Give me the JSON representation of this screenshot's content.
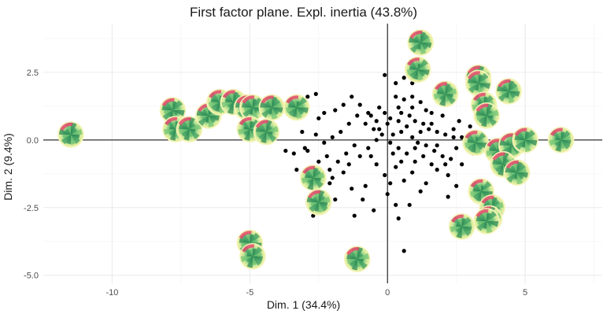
{
  "chart_data": {
    "type": "scatter",
    "title": "First factor plane. Expl. inertia (43.8%)",
    "xlabel": "Dim. 1 (34.4%)",
    "ylabel": "Dim. 2 (9.4%)",
    "xlim": [
      -12.5,
      7.8
    ],
    "ylim": [
      -5.3,
      4.3
    ],
    "x_ticks": [
      -10,
      -5,
      0,
      5
    ],
    "x_tick_labels": [
      "-10",
      "-5",
      "0",
      "5"
    ],
    "y_ticks": [
      -5,
      -2.5,
      0,
      2.5
    ],
    "y_tick_labels": [
      "-5.0",
      "-2.5",
      "0.0",
      "2.5"
    ],
    "grid": true,
    "reference_lines": {
      "x": 0,
      "y": 0
    },
    "colors": {
      "points": "#000000",
      "glyph_inner": "#2e8b57",
      "glyph_mid": "#74c476",
      "glyph_outer": "#f7f7a1",
      "glyph_accent": "#e34a6f",
      "grid_major": "#ebebeb",
      "grid_minor": "#f5f5f5"
    },
    "series": [
      {
        "marker": "point",
        "points": [
          [
            0.6,
            2.3
          ],
          [
            -0.1,
            2.4
          ],
          [
            0.3,
            2.1
          ],
          [
            0.9,
            2.1
          ],
          [
            0.3,
            1.6
          ],
          [
            0.6,
            1.5
          ],
          [
            0.4,
            1.2
          ],
          [
            0.9,
            1.2
          ],
          [
            1.2,
            1.4
          ],
          [
            1.4,
            1.1
          ],
          [
            1.6,
            1.0
          ],
          [
            2.0,
            0.9
          ],
          [
            -0.3,
            1.2
          ],
          [
            -0.1,
            1.0
          ],
          [
            0.1,
            0.8
          ],
          [
            0.0,
            0.6
          ],
          [
            0.4,
            0.7
          ],
          [
            0.7,
            0.5
          ],
          [
            1.0,
            0.7
          ],
          [
            1.3,
            0.6
          ],
          [
            1.5,
            0.4
          ],
          [
            1.8,
            0.3
          ],
          [
            2.1,
            0.2
          ],
          [
            2.4,
            0.4
          ],
          [
            2.7,
            0.1
          ],
          [
            3.0,
            -0.2
          ],
          [
            0.2,
            0.2
          ],
          [
            0.5,
            0.3
          ],
          [
            0.9,
            0.1
          ],
          [
            1.1,
            -0.1
          ],
          [
            1.4,
            -0.2
          ],
          [
            1.7,
            -0.4
          ],
          [
            2.0,
            -0.6
          ],
          [
            2.3,
            -0.7
          ],
          [
            2.5,
            -0.3
          ],
          [
            2.1,
            -0.9
          ],
          [
            1.6,
            -0.9
          ],
          [
            1.3,
            -0.6
          ],
          [
            1.0,
            -0.8
          ],
          [
            0.7,
            -0.5
          ],
          [
            0.4,
            -0.3
          ],
          [
            0.1,
            -0.1
          ],
          [
            -0.2,
            0.2
          ],
          [
            -0.5,
            0.4
          ],
          [
            -0.8,
            0.6
          ],
          [
            -1.1,
            0.9
          ],
          [
            -1.4,
            0.6
          ],
          [
            -1.7,
            0.3
          ],
          [
            -2.0,
            0.1
          ],
          [
            -2.3,
            -0.1
          ],
          [
            -2.6,
            0.2
          ],
          [
            -2.9,
            -0.4
          ],
          [
            -2.5,
            0.8
          ],
          [
            -2.9,
            1.6
          ],
          [
            -2.6,
            1.7
          ],
          [
            -2.3,
            1.0
          ],
          [
            -1.9,
            1.1
          ],
          [
            -1.6,
            1.3
          ],
          [
            -1.3,
            1.6
          ],
          [
            -1.0,
            1.3
          ],
          [
            -0.7,
            1.0
          ],
          [
            -0.4,
            0.7
          ],
          [
            -1.2,
            -0.2
          ],
          [
            -1.5,
            -0.5
          ],
          [
            -1.8,
            -0.8
          ],
          [
            -2.1,
            -1.1
          ],
          [
            -1.0,
            -0.6
          ],
          [
            -0.7,
            -0.3
          ],
          [
            -0.4,
            -0.9
          ],
          [
            -0.1,
            -1.3
          ],
          [
            0.3,
            -1.0
          ],
          [
            0.6,
            -1.5
          ],
          [
            0.9,
            -1.2
          ],
          [
            1.2,
            -1.9
          ],
          [
            0.8,
            -2.4
          ],
          [
            0.4,
            -2.9
          ],
          [
            0.6,
            -4.1
          ],
          [
            -0.5,
            -2.6
          ],
          [
            -1.2,
            -2.8
          ],
          [
            -1.3,
            -1.8
          ],
          [
            -1.6,
            -1.2
          ],
          [
            -0.8,
            -1.7
          ],
          [
            -1.9,
            -2.2
          ],
          [
            -2.2,
            -0.6
          ],
          [
            -2.5,
            -0.8
          ],
          [
            -3.0,
            -0.3
          ],
          [
            -3.4,
            -0.5
          ],
          [
            -3.7,
            -0.4
          ],
          [
            -2.7,
            -2.8
          ],
          [
            -2.4,
            -2.2
          ],
          [
            -2.1,
            -1.6
          ],
          [
            -1.4,
            -0.9
          ],
          [
            -0.4,
            0.0
          ],
          [
            -0.6,
            -0.6
          ],
          [
            0.2,
            -0.5
          ],
          [
            0.5,
            -0.8
          ],
          [
            1.0,
            -0.3
          ],
          [
            1.2,
            0.3
          ],
          [
            1.6,
            0.6
          ],
          [
            0.8,
            0.9
          ],
          [
            2.2,
            -1.3
          ],
          [
            2.5,
            -1.7
          ],
          [
            2.2,
            -2.1
          ],
          [
            2.7,
            -0.9
          ],
          [
            3.1,
            -0.5
          ],
          [
            3.4,
            -0.1
          ],
          [
            3.0,
            0.5
          ],
          [
            3.3,
            0.8
          ],
          [
            2.4,
            0.1
          ],
          [
            1.8,
            -0.2
          ],
          [
            -3.1,
            0.3
          ],
          [
            -2.8,
            -1.3
          ],
          [
            -3.3,
            -1.1
          ],
          [
            -2.0,
            -1.4
          ],
          [
            -0.9,
            -2.2
          ],
          [
            0.0,
            -2.0
          ],
          [
            0.1,
            -1.6
          ],
          [
            0.3,
            -2.4
          ],
          [
            1.4,
            -1.6
          ],
          [
            1.8,
            -1.1
          ],
          [
            2.6,
            0.7
          ],
          [
            0.9,
            1.6
          ],
          [
            0.5,
            1.0
          ],
          [
            -0.3,
            0.4
          ],
          [
            -0.6,
            0.9
          ]
        ]
      },
      {
        "marker": "star_glyph",
        "points": [
          [
            -11.5,
            0.2
          ],
          [
            -7.8,
            1.1
          ],
          [
            -7.7,
            0.4
          ],
          [
            -7.2,
            0.4
          ],
          [
            -6.5,
            0.9
          ],
          [
            -6.1,
            1.4
          ],
          [
            -5.6,
            1.4
          ],
          [
            -5.1,
            1.2
          ],
          [
            -4.9,
            1.2
          ],
          [
            -5.0,
            0.4
          ],
          [
            -4.4,
            0.3
          ],
          [
            -4.2,
            1.2
          ],
          [
            -3.3,
            1.2
          ],
          [
            -2.7,
            -1.4
          ],
          [
            -2.5,
            -2.3
          ],
          [
            -5.0,
            -3.8
          ],
          [
            -4.9,
            -4.3
          ],
          [
            -1.1,
            -4.4
          ],
          [
            1.2,
            3.6
          ],
          [
            1.1,
            2.6
          ],
          [
            2.1,
            1.7
          ],
          [
            3.3,
            2.3
          ],
          [
            3.3,
            2.1
          ],
          [
            3.5,
            1.3
          ],
          [
            3.6,
            0.9
          ],
          [
            4.4,
            1.8
          ],
          [
            3.2,
            -0.1
          ],
          [
            4.0,
            -0.4
          ],
          [
            4.5,
            -0.2
          ],
          [
            5.0,
            0.0
          ],
          [
            6.3,
            0.0
          ],
          [
            4.2,
            -0.9
          ],
          [
            4.7,
            -1.2
          ],
          [
            3.4,
            -1.9
          ],
          [
            3.8,
            -2.5
          ],
          [
            3.7,
            -2.9
          ],
          [
            3.6,
            -3.0
          ],
          [
            2.7,
            -3.2
          ]
        ]
      }
    ]
  }
}
